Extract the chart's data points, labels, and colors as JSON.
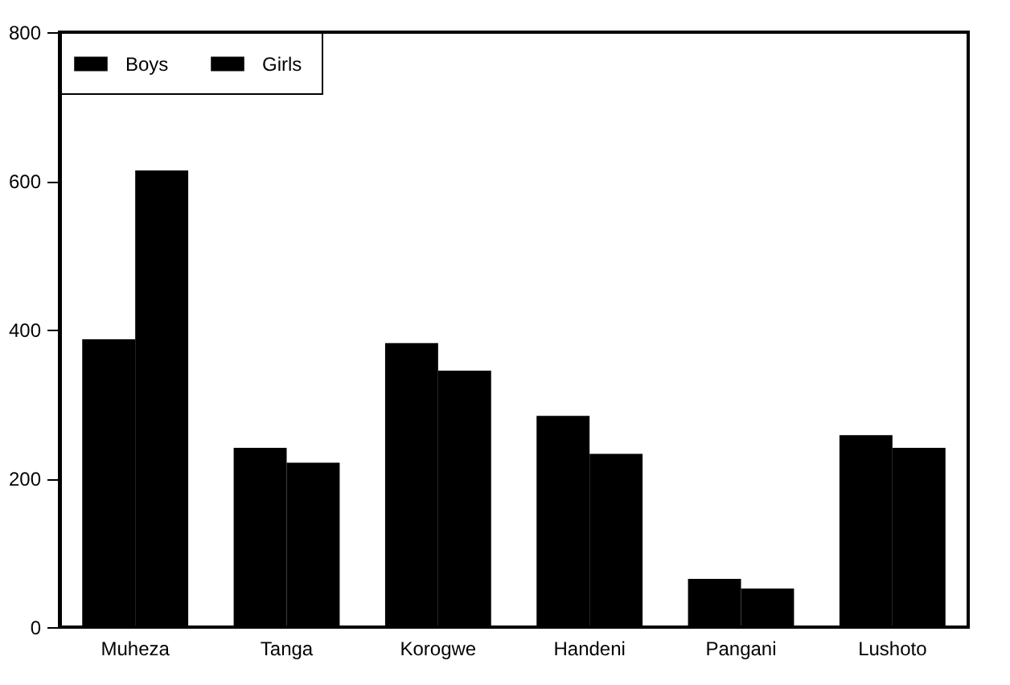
{
  "chart_data": {
    "type": "bar",
    "categories": [
      "Muheza",
      "Tanga",
      "Korogwe",
      "Handeni",
      "Pangani",
      "Lushoto"
    ],
    "series": [
      {
        "name": "Boys",
        "color": "#000000",
        "values": [
          387,
          241,
          382,
          284,
          65,
          258
        ]
      },
      {
        "name": "Girls",
        "color": "#000000",
        "values": [
          614,
          221,
          345,
          233,
          52,
          241
        ]
      }
    ],
    "ylim": [
      0,
      800
    ],
    "yticks": [
      0,
      200,
      400,
      600,
      800
    ],
    "grid": false,
    "legend": "top left"
  }
}
